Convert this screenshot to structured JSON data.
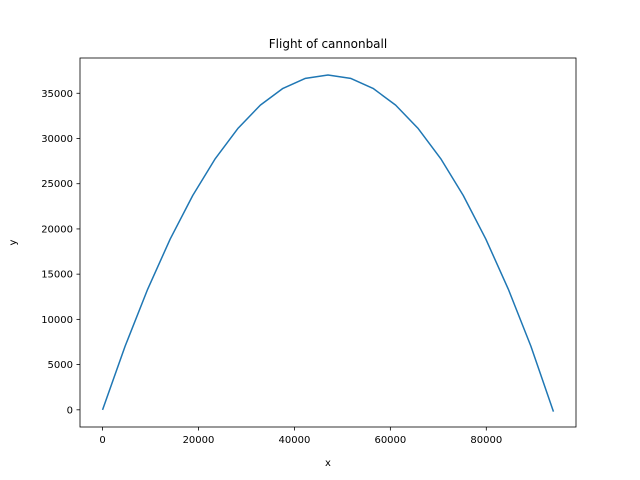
{
  "chart_data": {
    "type": "line",
    "title": "Flight of cannonball",
    "xlabel": "x",
    "ylabel": "y",
    "xlim": [
      -4700,
      98700
    ],
    "ylim": [
      -1900,
      38900
    ],
    "xticks": [
      0,
      20000,
      40000,
      60000,
      80000
    ],
    "xtick_labels": [
      "0",
      "20000",
      "40000",
      "60000",
      "80000"
    ],
    "yticks": [
      0,
      5000,
      10000,
      15000,
      20000,
      25000,
      30000,
      35000
    ],
    "ytick_labels": [
      "0",
      "5000",
      "10000",
      "15000",
      "20000",
      "25000",
      "30000",
      "35000"
    ],
    "grid": false,
    "line_color": "#1f77b4",
    "series": [
      {
        "x": [
          0,
          4700,
          9400,
          14100,
          18800,
          23500,
          28200,
          32900,
          37600,
          42300,
          47000,
          51700,
          56400,
          61100,
          65800,
          70500,
          75200,
          79900,
          84600,
          89300,
          94000
        ],
        "values": [
          0,
          7030,
          13330,
          18880,
          23700,
          27770,
          31100,
          33690,
          35540,
          36650,
          37020,
          36650,
          35540,
          33690,
          31100,
          27770,
          23700,
          18880,
          13330,
          7030,
          -200
        ]
      }
    ]
  }
}
